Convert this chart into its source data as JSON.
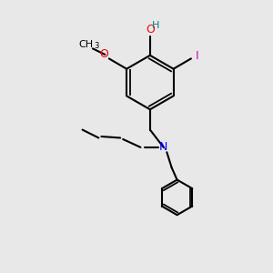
{
  "bg_color": "#e8e8e8",
  "atom_colors": {
    "C": "#000000",
    "O": "#ff0000",
    "N": "#0000ff",
    "I": "#cc00cc",
    "H": "#008080"
  },
  "bond_color": "#000000",
  "bond_width": 1.5,
  "figsize": [
    3.0,
    3.0
  ],
  "dpi": 100
}
